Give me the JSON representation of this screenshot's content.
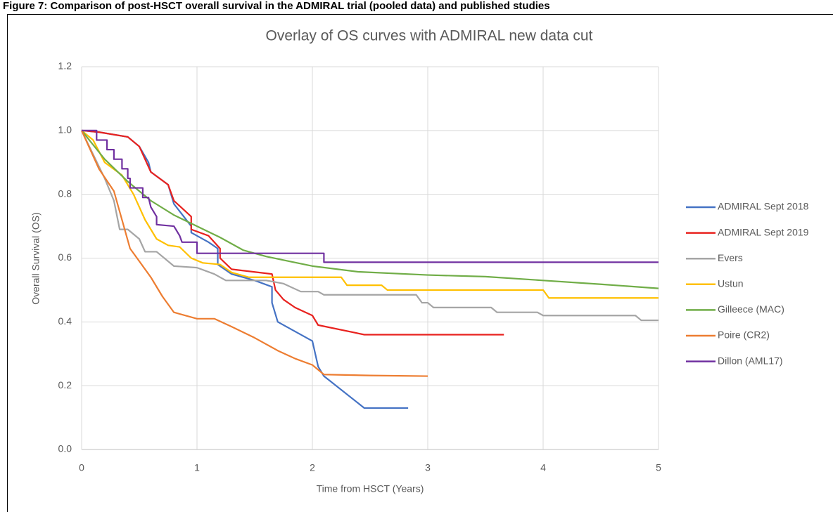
{
  "caption": "Figure 7: Comparison of post-HSCT overall survival in the ADMIRAL trial (pooled data) and published studies",
  "chart_data": {
    "type": "line",
    "title": "Overlay of OS curves with ADMIRAL new data cut",
    "x_label": "Time from HSCT (Years)",
    "y_label": "Overall Survival (OS)",
    "xlim": [
      0,
      5
    ],
    "xticks": [
      0,
      1,
      2,
      3,
      4,
      5
    ],
    "ylim": [
      0,
      1.2
    ],
    "yticks": [
      {
        "value": 0,
        "label": "0.0"
      },
      {
        "value": 0.2,
        "label": "0.2"
      },
      {
        "value": 0.4,
        "label": "0.4"
      },
      {
        "value": 0.6,
        "label": "0.6"
      },
      {
        "value": 0.8,
        "label": "0.8"
      },
      {
        "value": 1,
        "label": "1.0"
      },
      {
        "value": 1.2,
        "label": "1.2"
      }
    ],
    "grid": true,
    "legend": "right",
    "series": [
      {
        "name": "ADMIRAL Sept 2018",
        "color": "#4472c4",
        "x": [
          0,
          0.15,
          0.4,
          0.5,
          0.58,
          0.6,
          0.75,
          0.8,
          0.95,
          0.95,
          1.1,
          1.18,
          1.18,
          1.3,
          1.5,
          1.65,
          1.65,
          1.7,
          2.0,
          2.05,
          2.1,
          2.45,
          2.83
        ],
        "values": [
          1,
          0.995,
          0.98,
          0.95,
          0.9,
          0.87,
          0.83,
          0.77,
          0.7,
          0.68,
          0.65,
          0.63,
          0.58,
          0.55,
          0.53,
          0.51,
          0.46,
          0.4,
          0.34,
          0.26,
          0.23,
          0.13,
          0.13
        ]
      },
      {
        "name": "ADMIRAL Sept 2019",
        "color": "#e8221f",
        "x": [
          0,
          0.15,
          0.4,
          0.5,
          0.6,
          0.75,
          0.8,
          0.95,
          0.95,
          1.1,
          1.2,
          1.2,
          1.3,
          1.65,
          1.68,
          1.75,
          1.85,
          2.0,
          2.05,
          2.45,
          3.66
        ],
        "values": [
          1,
          0.995,
          0.98,
          0.95,
          0.87,
          0.83,
          0.78,
          0.73,
          0.69,
          0.67,
          0.63,
          0.6,
          0.565,
          0.55,
          0.5,
          0.47,
          0.445,
          0.42,
          0.39,
          0.36,
          0.36
        ]
      },
      {
        "name": "Evers",
        "color": "#a5a5a5",
        "x": [
          0,
          0.2,
          0.28,
          0.33,
          0.4,
          0.5,
          0.55,
          0.65,
          0.8,
          1.0,
          1.15,
          1.25,
          1.6,
          1.75,
          1.9,
          2.05,
          2.1,
          2.9,
          2.95,
          3.0,
          3.05,
          3.55,
          3.6,
          3.95,
          4.0,
          4.8,
          4.85,
          5.0
        ],
        "values": [
          1,
          0.85,
          0.78,
          0.69,
          0.69,
          0.66,
          0.62,
          0.62,
          0.575,
          0.57,
          0.55,
          0.53,
          0.53,
          0.52,
          0.495,
          0.495,
          0.485,
          0.485,
          0.46,
          0.46,
          0.445,
          0.445,
          0.43,
          0.43,
          0.42,
          0.42,
          0.405,
          0.405
        ]
      },
      {
        "name": "Ustun",
        "color": "#ffc000",
        "x": [
          0,
          0.1,
          0.2,
          0.35,
          0.45,
          0.55,
          0.65,
          0.75,
          0.85,
          0.95,
          1.05,
          1.2,
          1.3,
          1.45,
          2.25,
          2.3,
          2.6,
          2.65,
          4.0,
          4.05,
          5.0
        ],
        "values": [
          1,
          0.97,
          0.9,
          0.86,
          0.8,
          0.72,
          0.66,
          0.64,
          0.635,
          0.6,
          0.585,
          0.58,
          0.555,
          0.54,
          0.54,
          0.515,
          0.515,
          0.5,
          0.5,
          0.475,
          0.475
        ]
      },
      {
        "name": "Gilleece (MAC)",
        "color": "#70ad47",
        "x": [
          0,
          0.2,
          0.4,
          0.6,
          0.8,
          1.0,
          1.2,
          1.4,
          1.6,
          1.8,
          2.0,
          2.4,
          3.0,
          3.5,
          4.0,
          4.5,
          5.0
        ],
        "values": [
          1,
          0.91,
          0.84,
          0.78,
          0.735,
          0.7,
          0.665,
          0.625,
          0.605,
          0.59,
          0.575,
          0.557,
          0.547,
          0.542,
          0.53,
          0.518,
          0.505
        ]
      },
      {
        "name": "Poire (CR2)",
        "color": "#ed7d31",
        "x": [
          0,
          0.15,
          0.28,
          0.35,
          0.42,
          0.5,
          0.6,
          0.7,
          0.8,
          1.0,
          1.15,
          1.3,
          1.5,
          1.7,
          1.85,
          2.0,
          2.1,
          2.5,
          3.0
        ],
        "values": [
          1,
          0.88,
          0.81,
          0.72,
          0.63,
          0.59,
          0.54,
          0.48,
          0.43,
          0.41,
          0.41,
          0.385,
          0.35,
          0.31,
          0.285,
          0.265,
          0.235,
          0.232,
          0.23
        ]
      },
      {
        "name": "Dillon (AML17)",
        "color": "#7030a0",
        "x": [
          0,
          0.13,
          0.13,
          0.22,
          0.22,
          0.28,
          0.28,
          0.35,
          0.35,
          0.4,
          0.4,
          0.42,
          0.42,
          0.53,
          0.53,
          0.58,
          0.6,
          0.65,
          0.65,
          0.8,
          0.85,
          0.87,
          1.0,
          1.0,
          2.1,
          2.1,
          5.0
        ],
        "values": [
          1,
          1,
          0.97,
          0.97,
          0.94,
          0.94,
          0.91,
          0.91,
          0.88,
          0.88,
          0.85,
          0.85,
          0.82,
          0.82,
          0.79,
          0.79,
          0.76,
          0.73,
          0.705,
          0.7,
          0.67,
          0.65,
          0.65,
          0.615,
          0.615,
          0.587,
          0.587
        ]
      }
    ]
  }
}
